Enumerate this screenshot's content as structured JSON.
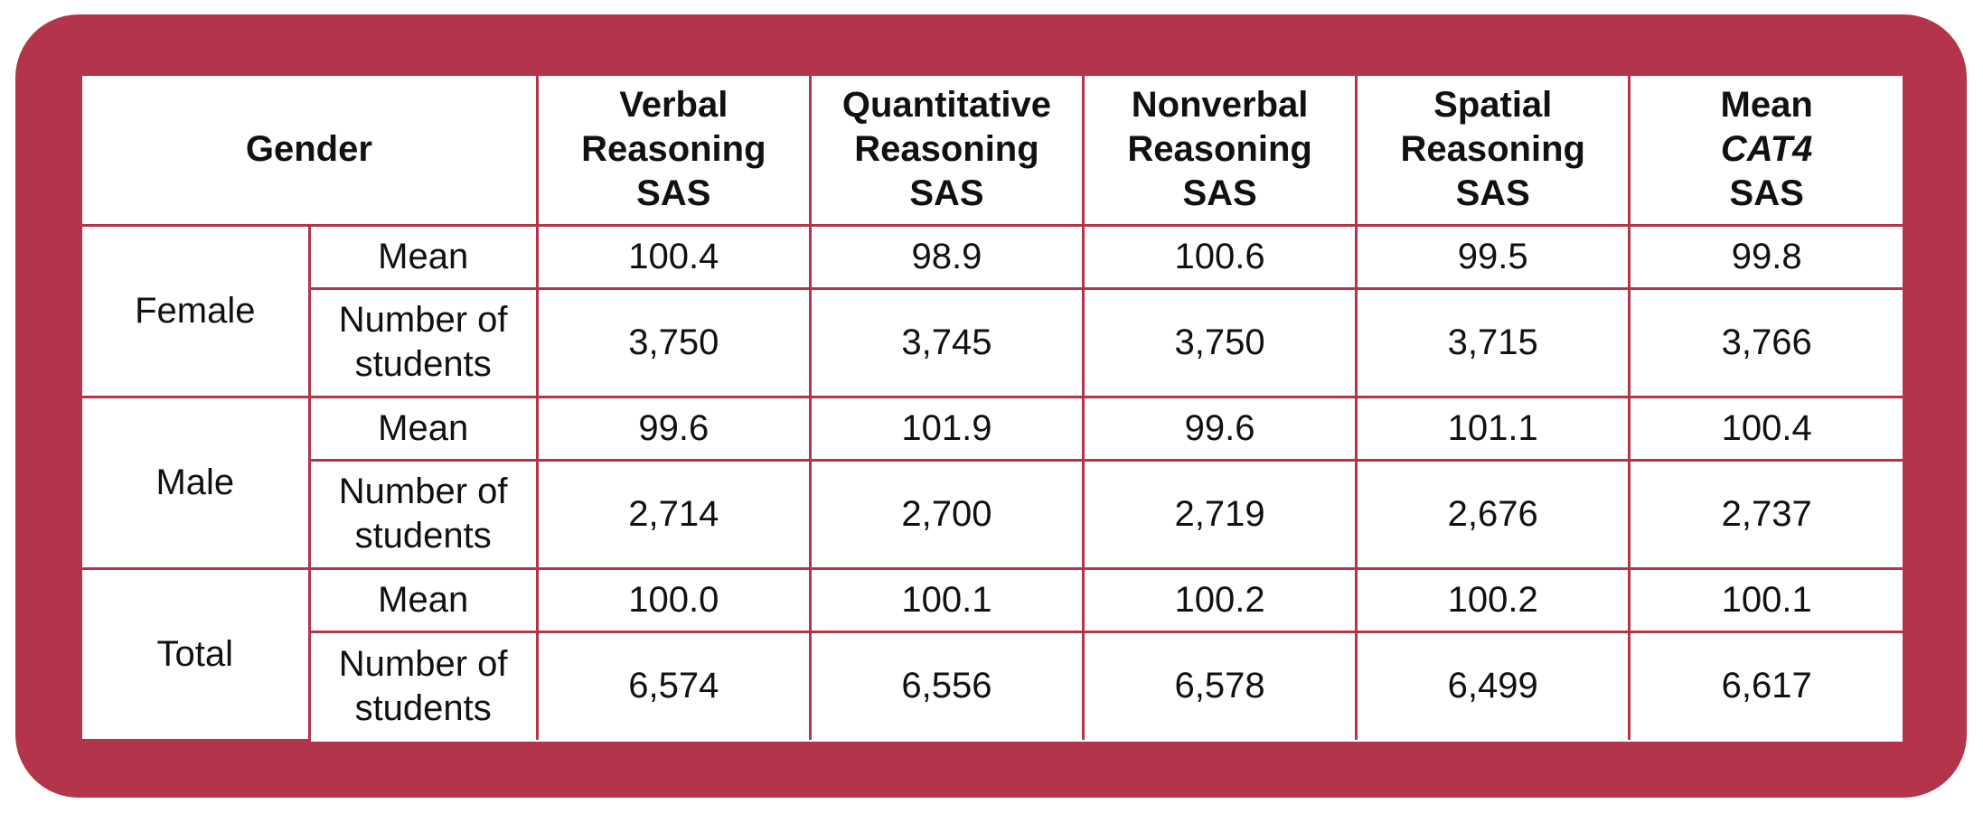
{
  "header": {
    "gender": "Gender",
    "columns": [
      {
        "line1": "Verbal",
        "line2": "Reasoning",
        "line3": "SAS",
        "italic_line2": false
      },
      {
        "line1": "Quantitative",
        "line2": "Reasoning",
        "line3": "SAS",
        "italic_line2": false
      },
      {
        "line1": "Nonverbal",
        "line2": "Reasoning",
        "line3": "SAS",
        "italic_line2": false
      },
      {
        "line1": "Spatial",
        "line2": "Reasoning",
        "line3": "SAS",
        "italic_line2": false
      },
      {
        "line1": "Mean",
        "line2": "CAT4",
        "line3": "SAS",
        "italic_line2": true
      }
    ]
  },
  "groups": [
    {
      "label": "Female",
      "mean_label": "Mean",
      "count_label_1": "Number of",
      "count_label_2": "students",
      "mean": [
        "100.4",
        "98.9",
        "100.6",
        "99.5",
        "99.8"
      ],
      "count": [
        "3,750",
        "3,745",
        "3,750",
        "3,715",
        "3,766"
      ]
    },
    {
      "label": "Male",
      "mean_label": "Mean",
      "count_label_1": "Number of",
      "count_label_2": "students",
      "mean": [
        "99.6",
        "101.9",
        "99.6",
        "101.1",
        "100.4"
      ],
      "count": [
        "2,714",
        "2,700",
        "2,719",
        "2,676",
        "2,737"
      ]
    },
    {
      "label": "Total",
      "mean_label": "Mean",
      "count_label_1": "Number of",
      "count_label_2": "students",
      "mean": [
        "100.0",
        "100.1",
        "100.2",
        "100.2",
        "100.1"
      ],
      "count": [
        "6,574",
        "6,556",
        "6,578",
        "6,499",
        "6,617"
      ]
    }
  ],
  "colors": {
    "frame": "#b2354b",
    "table_background": "#ffffff",
    "text": "#111111"
  }
}
